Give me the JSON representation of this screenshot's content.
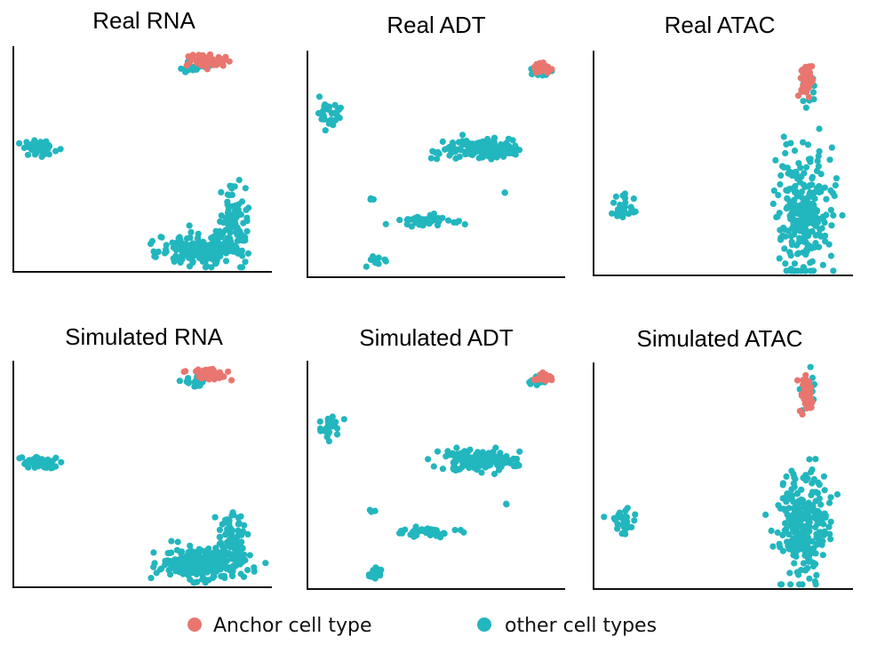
{
  "colors": {
    "anchor": "#E8766F",
    "other": "#22B6BE",
    "axis": "#111111"
  },
  "legend": {
    "anchor_label": "Anchor cell type",
    "other_label": "other cell types"
  },
  "chart_data": [
    {
      "type": "scatter",
      "title": "Real RNA",
      "xlabel": "",
      "ylabel": "",
      "grid": false,
      "xlim": [
        0,
        100
      ],
      "ylim": [
        0,
        100
      ],
      "clusters": [
        {
          "group": "other",
          "cx": 9,
          "cy": 55,
          "sx": 3.2,
          "sy": 1.8,
          "n": 50
        },
        {
          "group": "other",
          "cx": 73,
          "cy": 9,
          "sx": 8,
          "sy": 3.5,
          "n": 200
        },
        {
          "group": "other",
          "cx": 86,
          "cy": 20,
          "sx": 3,
          "sy": 9,
          "n": 90
        },
        {
          "group": "other",
          "cx": 70,
          "cy": 92,
          "sx": 2.2,
          "sy": 1.3,
          "n": 18
        },
        {
          "group": "anchor",
          "cx": 76,
          "cy": 95,
          "sx": 3.5,
          "sy": 1.3,
          "n": 60
        }
      ]
    },
    {
      "type": "scatter",
      "title": "Real ADT",
      "xlabel": "",
      "ylabel": "",
      "grid": false,
      "xlim": [
        0,
        100
      ],
      "ylim": [
        0,
        100
      ],
      "clusters": [
        {
          "group": "other",
          "cx": 8,
          "cy": 72,
          "sx": 2,
          "sy": 3,
          "n": 28
        },
        {
          "group": "other",
          "cx": 67,
          "cy": 57,
          "sx": 7.5,
          "sy": 2.2,
          "n": 150
        },
        {
          "group": "other",
          "cx": 46,
          "cy": 24,
          "sx": 6,
          "sy": 1.2,
          "n": 45
        },
        {
          "group": "other",
          "cx": 24,
          "cy": 34,
          "sx": 0.5,
          "sy": 0.5,
          "n": 3
        },
        {
          "group": "other",
          "cx": 78,
          "cy": 37,
          "sx": 0.3,
          "sy": 0.3,
          "n": 2
        },
        {
          "group": "other",
          "cx": 26,
          "cy": 6,
          "sx": 1.6,
          "sy": 1.5,
          "n": 14
        },
        {
          "group": "other",
          "cx": 91,
          "cy": 92,
          "sx": 2,
          "sy": 1.2,
          "n": 14
        },
        {
          "group": "anchor",
          "cx": 92,
          "cy": 94,
          "sx": 2,
          "sy": 1.2,
          "n": 35
        }
      ]
    },
    {
      "type": "scatter",
      "title": "Real ATAC",
      "xlabel": "",
      "ylabel": "",
      "grid": false,
      "xlim": [
        0,
        100
      ],
      "ylim": [
        0,
        100
      ],
      "clusters": [
        {
          "group": "other",
          "cx": 10,
          "cy": 29,
          "sx": 2.5,
          "sy": 2.5,
          "n": 30
        },
        {
          "group": "other",
          "cx": 82,
          "cy": 27,
          "sx": 5,
          "sy": 13,
          "n": 260
        },
        {
          "group": "other",
          "cx": 84,
          "cy": 86,
          "sx": 1.4,
          "sy": 4,
          "n": 18
        },
        {
          "group": "anchor",
          "cx": 83,
          "cy": 87,
          "sx": 1.4,
          "sy": 4.5,
          "n": 45
        }
      ]
    },
    {
      "type": "scatter",
      "title": "Simulated RNA",
      "xlabel": "",
      "ylabel": "",
      "grid": false,
      "xlim": [
        0,
        100
      ],
      "ylim": [
        0,
        100
      ],
      "clusters": [
        {
          "group": "other",
          "cx": 9,
          "cy": 55,
          "sx": 3.2,
          "sy": 1.8,
          "n": 50
        },
        {
          "group": "other",
          "cx": 73,
          "cy": 9,
          "sx": 8,
          "sy": 3.5,
          "n": 200
        },
        {
          "group": "other",
          "cx": 86,
          "cy": 20,
          "sx": 3,
          "sy": 9,
          "n": 90
        },
        {
          "group": "other",
          "cx": 70,
          "cy": 92,
          "sx": 2.2,
          "sy": 1.3,
          "n": 18
        },
        {
          "group": "anchor",
          "cx": 76,
          "cy": 95,
          "sx": 3.5,
          "sy": 1.3,
          "n": 60
        }
      ]
    },
    {
      "type": "scatter",
      "title": "Simulated ADT",
      "xlabel": "",
      "ylabel": "",
      "grid": false,
      "xlim": [
        0,
        100
      ],
      "ylim": [
        0,
        100
      ],
      "clusters": [
        {
          "group": "other",
          "cx": 8,
          "cy": 72,
          "sx": 2,
          "sy": 3,
          "n": 28
        },
        {
          "group": "other",
          "cx": 67,
          "cy": 57,
          "sx": 7.5,
          "sy": 2.2,
          "n": 150
        },
        {
          "group": "other",
          "cx": 46,
          "cy": 24,
          "sx": 6,
          "sy": 1.2,
          "n": 45
        },
        {
          "group": "other",
          "cx": 24,
          "cy": 34,
          "sx": 0.5,
          "sy": 0.5,
          "n": 3
        },
        {
          "group": "other",
          "cx": 78,
          "cy": 37,
          "sx": 0.3,
          "sy": 0.3,
          "n": 2
        },
        {
          "group": "other",
          "cx": 26,
          "cy": 6,
          "sx": 1.6,
          "sy": 1.5,
          "n": 14
        },
        {
          "group": "other",
          "cx": 91,
          "cy": 92,
          "sx": 2,
          "sy": 1.2,
          "n": 14
        },
        {
          "group": "anchor",
          "cx": 92,
          "cy": 94,
          "sx": 2,
          "sy": 1.2,
          "n": 35
        }
      ]
    },
    {
      "type": "scatter",
      "title": "Simulated ATAC",
      "xlabel": "",
      "ylabel": "",
      "grid": false,
      "xlim": [
        0,
        100
      ],
      "ylim": [
        0,
        100
      ],
      "clusters": [
        {
          "group": "other",
          "cx": 10,
          "cy": 29,
          "sx": 2.5,
          "sy": 2.5,
          "n": 30
        },
        {
          "group": "other",
          "cx": 82,
          "cy": 27,
          "sx": 5,
          "sy": 13,
          "n": 260
        },
        {
          "group": "other",
          "cx": 84,
          "cy": 86,
          "sx": 1.4,
          "sy": 4,
          "n": 18
        },
        {
          "group": "anchor",
          "cx": 83,
          "cy": 87,
          "sx": 1.4,
          "sy": 4.5,
          "n": 45
        }
      ]
    }
  ]
}
